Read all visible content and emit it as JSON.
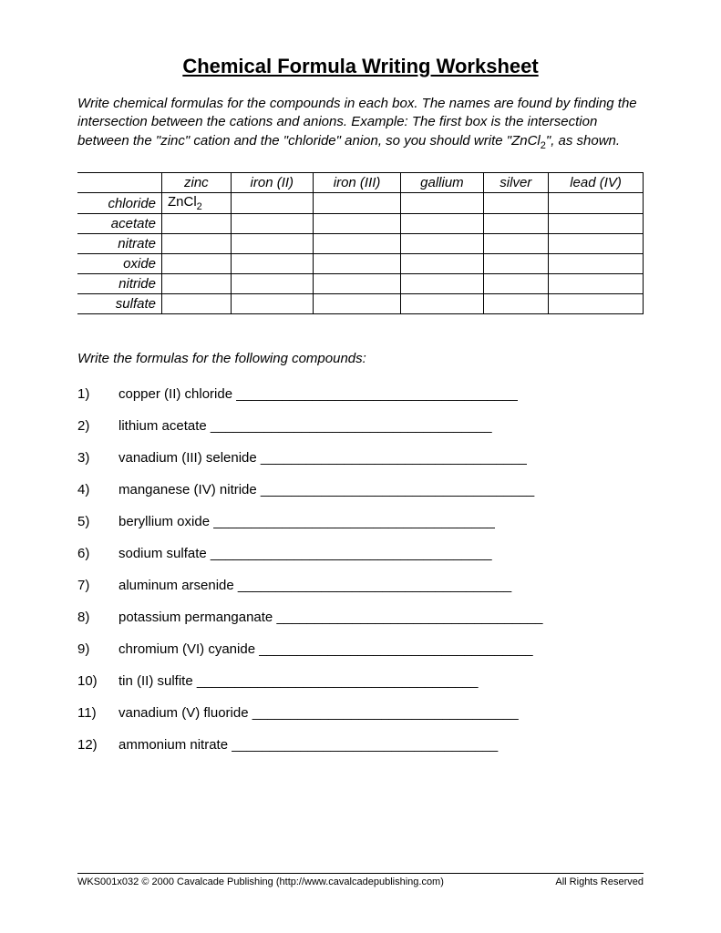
{
  "title": "Chemical Formula Writing Worksheet",
  "instructions": "Write chemical formulas for the compounds in each box.  The names are found by finding the intersection between the cations and anions.  Example:  The first box is the intersection between the \"zinc\" cation and the \"chloride\" anion, so you should write \"ZnCl",
  "instructions_sub": "2",
  "instructions_after": "\", as shown.",
  "table": {
    "col_headers": [
      "zinc",
      "iron (II)",
      "iron (III)",
      "gallium",
      "silver",
      "lead (IV)"
    ],
    "row_headers": [
      "chloride",
      "acetate",
      "nitrate",
      "oxide",
      "nitride",
      "sulfate"
    ],
    "cells": {
      "0_0": "ZnCl",
      "0_0_sub": "2"
    }
  },
  "subheading": "Write the formulas for the following compounds:",
  "questions": [
    {
      "num": "1)",
      "text": "copper (II) chloride ",
      "line": "_____________________________________"
    },
    {
      "num": "2)",
      "text": "lithium acetate ",
      "line": "_____________________________________"
    },
    {
      "num": "3)",
      "text": "vanadium (III) selenide ",
      "line": "___________________________________"
    },
    {
      "num": "4)",
      "text": "manganese (IV) nitride ",
      "line": "____________________________________"
    },
    {
      "num": "5)",
      "text": "beryllium oxide ",
      "line": "_____________________________________"
    },
    {
      "num": "6)",
      "text": "sodium sulfate ",
      "line": "_____________________________________"
    },
    {
      "num": "7)",
      "text": "aluminum arsenide ",
      "line": "____________________________________"
    },
    {
      "num": "8)",
      "text": "potassium permanganate ",
      "line": "___________________________________"
    },
    {
      "num": "9)",
      "text": "chromium (VI) cyanide ",
      "line": "____________________________________"
    },
    {
      "num": "10)",
      "text": "tin (II) sulfite ",
      "line": "_____________________________________"
    },
    {
      "num": "11)",
      "text": "vanadium (V) fluoride ",
      "line": "___________________________________"
    },
    {
      "num": "12)",
      "text": "ammonium nitrate ",
      "line": "___________________________________"
    }
  ],
  "footer_left": "WKS001x032  © 2000 Cavalcade Publishing (http://www.cavalcadepublishing.com)",
  "footer_right": "All Rights Reserved"
}
